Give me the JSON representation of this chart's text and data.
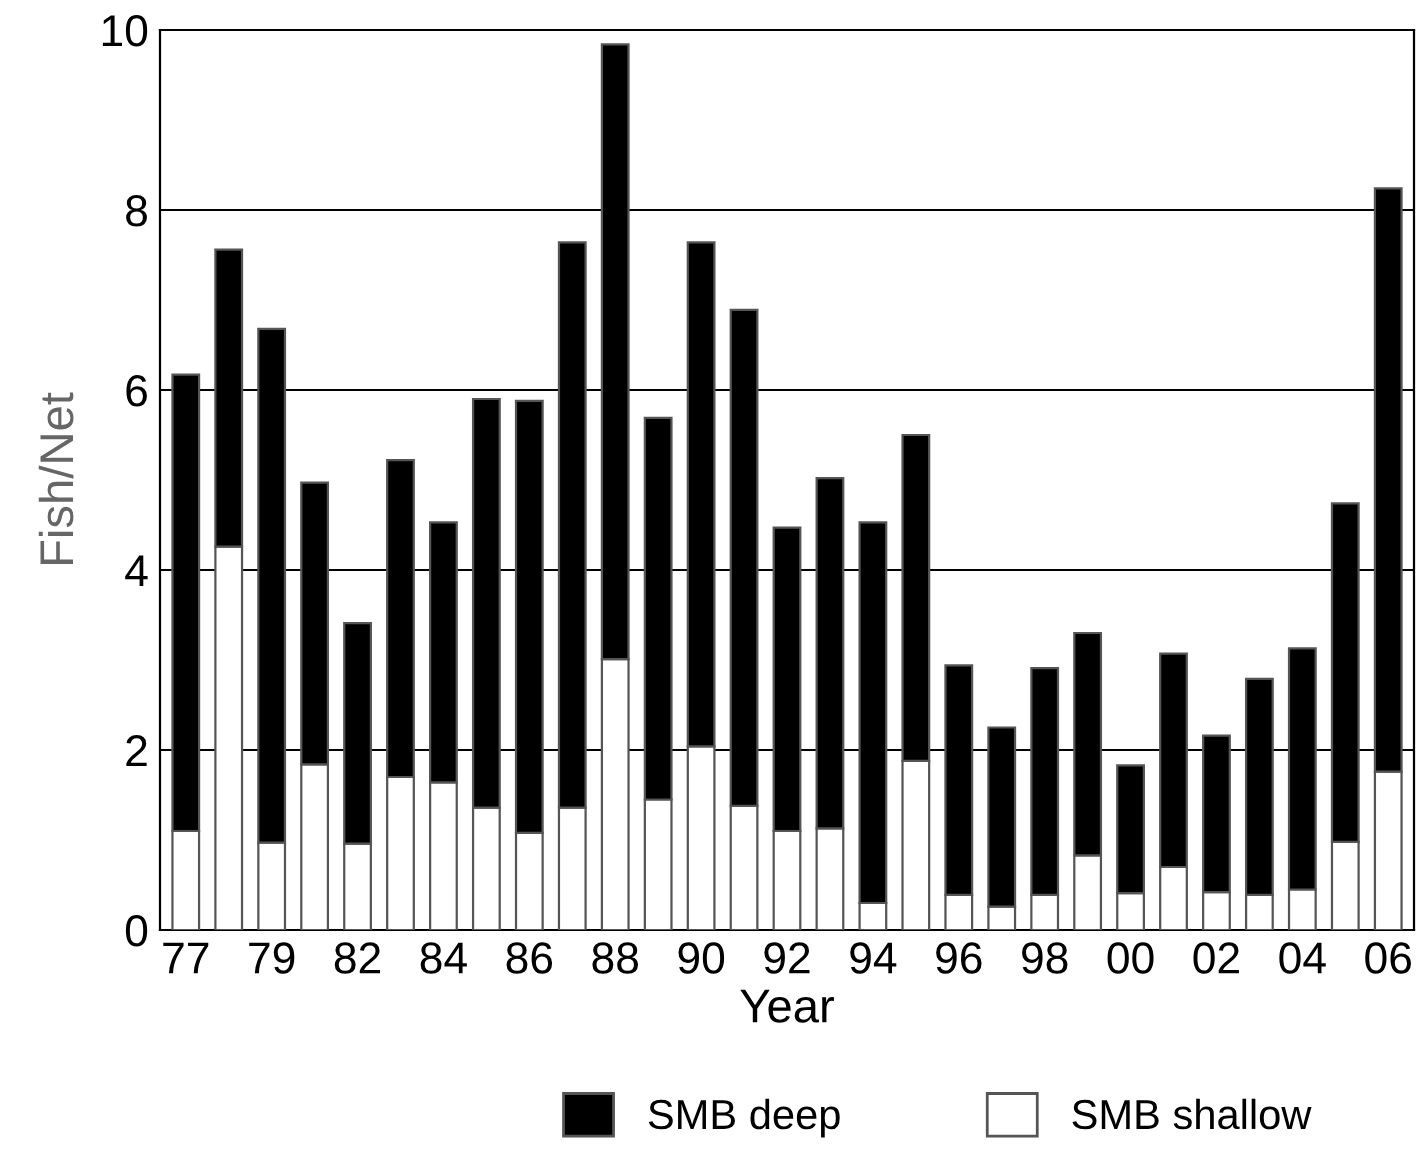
{
  "chart_data": {
    "type": "bar",
    "xlabel": "Year",
    "ylabel": "Fish/Net",
    "categories": [
      "77",
      null,
      "79",
      null,
      "82",
      null,
      "84",
      null,
      "86",
      null,
      "88",
      null,
      "90",
      null,
      "92",
      null,
      "94",
      null,
      "96",
      null,
      "98",
      null,
      "00",
      null,
      "02",
      null,
      "04",
      null,
      "06"
    ],
    "stacked": true,
    "series": [
      {
        "name": "SMB shallow",
        "color": "#ffffff",
        "values": [
          1.1,
          4.26,
          0.97,
          1.84,
          0.96,
          1.7,
          1.64,
          1.36,
          1.08,
          1.36,
          3.01,
          1.45,
          2.04,
          1.38,
          1.1,
          1.13,
          0.3,
          1.88,
          0.39,
          0.26,
          0.39,
          0.83,
          0.41,
          0.7,
          0.42,
          0.39,
          0.45,
          0.98,
          1.76
        ]
      },
      {
        "name": "SMB deep",
        "color": "#000000",
        "values": [
          5.07,
          3.3,
          5.71,
          3.13,
          2.45,
          3.52,
          2.89,
          4.54,
          4.8,
          6.28,
          6.83,
          4.24,
          5.6,
          5.51,
          3.37,
          3.89,
          4.23,
          3.62,
          2.55,
          1.99,
          2.52,
          2.47,
          1.42,
          2.37,
          1.74,
          2.4,
          2.68,
          3.76,
          6.48
        ]
      }
    ],
    "ylim": [
      0,
      10
    ],
    "yticks": [
      0,
      2,
      4,
      6,
      8,
      10
    ],
    "grid": "y",
    "legend": "bottom"
  }
}
